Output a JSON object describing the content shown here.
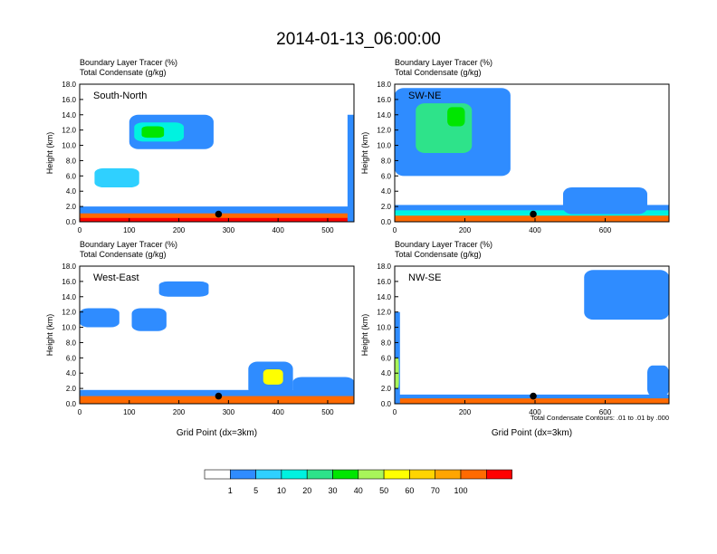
{
  "title": "2014-01-13_06:00:00",
  "panel_subtitle_1": "Boundary Layer Tracer    (%)",
  "panel_subtitle_2": "Total Condensate   (g/kg)",
  "footnote": "Total Condensate Contours: .01 to .01 by .000",
  "colors": {
    "levels": [
      "#ffffff",
      "#2f8cff",
      "#2fd0ff",
      "#00f2e0",
      "#2ee38a",
      "#00e600",
      "#a8f55a",
      "#ffff00",
      "#ffd400",
      "#ffa500",
      "#ff6a00",
      "#ff0000"
    ],
    "contour": "#000000"
  },
  "colorbar": {
    "labels": [
      "1",
      "5",
      "10",
      "20",
      "30",
      "40",
      "50",
      "60",
      "70",
      "100"
    ]
  },
  "chart_data": [
    {
      "type": "heatmap",
      "panel": "South-North",
      "title": "South-North",
      "subtitle": [
        "Boundary Layer Tracer    (%)",
        "Total Condensate   (g/kg)"
      ],
      "ylabel": "Height (km)",
      "xlabel": "",
      "xlim": [
        0,
        553
      ],
      "ylim": [
        0,
        18
      ],
      "xticks": [
        "0",
        "100",
        "200",
        "300",
        "400",
        "500"
      ],
      "yticks": [
        "0.0",
        "2.0",
        "4.0",
        "6.0",
        "8.0",
        "10.0",
        "12.0",
        "14.0",
        "16.0",
        "18.0"
      ],
      "marker": {
        "x": 280,
        "y": 1.0
      },
      "features": [
        {
          "level": 1,
          "x": [
            0,
            553
          ],
          "y": [
            0,
            2.0
          ]
        },
        {
          "level": 10,
          "x": [
            0,
            553
          ],
          "y": [
            0,
            1.1
          ]
        },
        {
          "level": 11,
          "x": [
            0,
            553
          ],
          "y": [
            0,
            0.5
          ]
        },
        {
          "level": 1,
          "x": [
            100,
            270
          ],
          "y": [
            9.5,
            14.0
          ]
        },
        {
          "level": 3,
          "x": [
            110,
            210
          ],
          "y": [
            10.5,
            13.0
          ]
        },
        {
          "level": 5,
          "x": [
            125,
            170
          ],
          "y": [
            11.0,
            12.5
          ]
        },
        {
          "level": 2,
          "x": [
            30,
            120
          ],
          "y": [
            4.5,
            7.0
          ]
        },
        {
          "level": 1,
          "x": [
            540,
            553
          ],
          "y": [
            0,
            14.0
          ]
        }
      ]
    },
    {
      "type": "heatmap",
      "panel": "SW-NE",
      "title": "SW-NE",
      "subtitle": [
        "Boundary Layer Tracer    (%)",
        "Total Condensate   (g/kg)"
      ],
      "ylabel": "Height (km)",
      "xlabel": "",
      "xlim": [
        0,
        782
      ],
      "ylim": [
        0,
        18
      ],
      "xticks": [
        "0",
        "200",
        "400",
        "600"
      ],
      "yticks": [
        "0.0",
        "2.0",
        "4.0",
        "6.0",
        "8.0",
        "10.0",
        "12.0",
        "14.0",
        "16.0",
        "18.0"
      ],
      "marker": {
        "x": 395,
        "y": 1.0
      },
      "features": [
        {
          "level": 1,
          "x": [
            0,
            782
          ],
          "y": [
            0,
            2.2
          ]
        },
        {
          "level": 3,
          "x": [
            0,
            782
          ],
          "y": [
            0,
            1.5
          ]
        },
        {
          "level": 10,
          "x": [
            0,
            782
          ],
          "y": [
            0,
            0.8
          ]
        },
        {
          "level": 1,
          "x": [
            0,
            330
          ],
          "y": [
            6.0,
            17.5
          ]
        },
        {
          "level": 4,
          "x": [
            60,
            220
          ],
          "y": [
            9.0,
            15.5
          ]
        },
        {
          "level": 5,
          "x": [
            150,
            200
          ],
          "y": [
            12.5,
            15.0
          ]
        },
        {
          "level": 1,
          "x": [
            480,
            720
          ],
          "y": [
            1.0,
            4.5
          ]
        }
      ]
    },
    {
      "type": "heatmap",
      "panel": "West-East",
      "title": "West-East",
      "subtitle": [
        "Boundary Layer Tracer    (%)",
        "Total Condensate   (g/kg)"
      ],
      "ylabel": "Height (km)",
      "xlabel": "Grid Point (dx=3km)",
      "xlim": [
        0,
        553
      ],
      "ylim": [
        0,
        18
      ],
      "xticks": [
        "0",
        "100",
        "200",
        "300",
        "400",
        "500"
      ],
      "yticks": [
        "0.0",
        "2.0",
        "4.0",
        "6.0",
        "8.0",
        "10.0",
        "12.0",
        "14.0",
        "16.0",
        "18.0"
      ],
      "marker": {
        "x": 280,
        "y": 1.0
      },
      "features": [
        {
          "level": 1,
          "x": [
            0,
            553
          ],
          "y": [
            0,
            1.8
          ]
        },
        {
          "level": 10,
          "x": [
            0,
            553
          ],
          "y": [
            0,
            1.0
          ]
        },
        {
          "level": 1,
          "x": [
            0,
            80
          ],
          "y": [
            10.0,
            12.5
          ]
        },
        {
          "level": 1,
          "x": [
            105,
            175
          ],
          "y": [
            9.5,
            12.5
          ]
        },
        {
          "level": 1,
          "x": [
            160,
            260
          ],
          "y": [
            14.0,
            16.0
          ]
        },
        {
          "level": 1,
          "x": [
            340,
            430
          ],
          "y": [
            1.0,
            5.5
          ]
        },
        {
          "level": 7,
          "x": [
            370,
            410
          ],
          "y": [
            2.5,
            4.5
          ]
        },
        {
          "level": 1,
          "x": [
            430,
            553
          ],
          "y": [
            1.0,
            3.5
          ]
        }
      ]
    },
    {
      "type": "heatmap",
      "panel": "NW-SE",
      "title": "NW-SE",
      "subtitle": [
        "Boundary Layer Tracer    (%)",
        "Total Condensate   (g/kg)"
      ],
      "ylabel": "Height (km)",
      "xlabel": "Grid Point (dx=3km)",
      "xlim": [
        0,
        782
      ],
      "ylim": [
        0,
        18
      ],
      "xticks": [
        "0",
        "200",
        "400",
        "600"
      ],
      "yticks": [
        "0.0",
        "2.0",
        "4.0",
        "6.0",
        "8.0",
        "10.0",
        "12.0",
        "14.0",
        "16.0",
        "18.0"
      ],
      "marker": {
        "x": 395,
        "y": 1.0
      },
      "features": [
        {
          "level": 1,
          "x": [
            0,
            782
          ],
          "y": [
            0,
            1.2
          ]
        },
        {
          "level": 10,
          "x": [
            0,
            782
          ],
          "y": [
            0,
            0.7
          ]
        },
        {
          "level": 1,
          "x": [
            0,
            15
          ],
          "y": [
            0,
            12.0
          ]
        },
        {
          "level": 6,
          "x": [
            0,
            12
          ],
          "y": [
            2.0,
            6.0
          ]
        },
        {
          "level": 1,
          "x": [
            540,
            782
          ],
          "y": [
            11.0,
            17.5
          ]
        },
        {
          "level": 1,
          "x": [
            720,
            782
          ],
          "y": [
            1.0,
            5.0
          ]
        }
      ]
    }
  ]
}
